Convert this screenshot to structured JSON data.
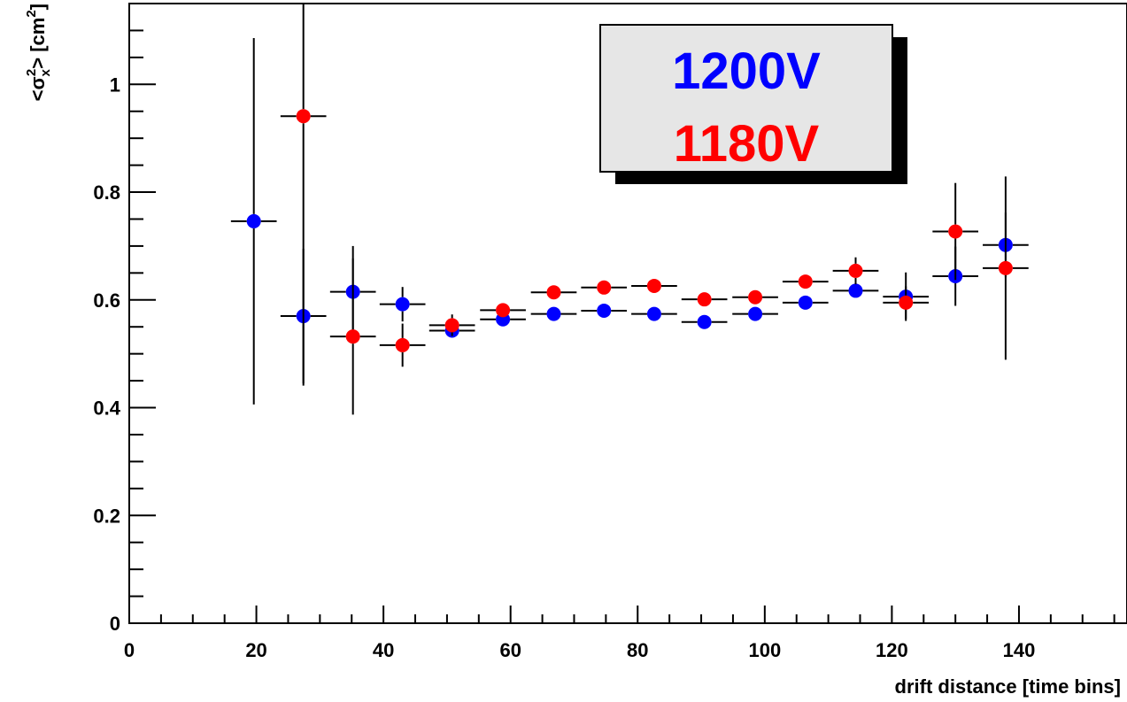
{
  "chart_data": {
    "type": "scatter",
    "xlabel": "drift distance [time bins]",
    "ylabel": {
      "prefix": "<σ",
      "subscript": "x",
      "superscript": "2",
      "suffix": "> [cm",
      "unit_superscript": "2",
      "close": "]"
    },
    "xlim": [
      0,
      157
    ],
    "ylim": [
      0,
      1.15
    ],
    "x_ticks": [
      "0",
      "20",
      "40",
      "60",
      "80",
      "100",
      "120",
      "140"
    ],
    "y_ticks": [
      "0",
      "0.2",
      "0.4",
      "0.6",
      "0.8",
      "1"
    ],
    "grid": false,
    "legend_placement": "top-center",
    "bin_half_width": 3.6,
    "series": [
      {
        "name": "1200V",
        "color": "#0000ff",
        "points": [
          {
            "x": 19.6,
            "y": 0.746,
            "err": 0.34
          },
          {
            "x": 27.4,
            "y": 0.57,
            "err": 0.125
          },
          {
            "x": 35.2,
            "y": 0.615,
            "err": 0.085
          },
          {
            "x": 43.0,
            "y": 0.592,
            "err": 0.032
          },
          {
            "x": 50.8,
            "y": 0.543,
            "err": 0.01
          },
          {
            "x": 58.8,
            "y": 0.564,
            "err": 0.006
          },
          {
            "x": 66.8,
            "y": 0.574,
            "err": 0.006
          },
          {
            "x": 74.7,
            "y": 0.58,
            "err": 0.006
          },
          {
            "x": 82.6,
            "y": 0.574,
            "err": 0.006
          },
          {
            "x": 90.5,
            "y": 0.559,
            "err": 0.007
          },
          {
            "x": 98.5,
            "y": 0.574,
            "err": 0.007
          },
          {
            "x": 106.4,
            "y": 0.595,
            "err": 0.008
          },
          {
            "x": 114.3,
            "y": 0.617,
            "err": 0.01
          },
          {
            "x": 122.2,
            "y": 0.606,
            "err": 0.045
          },
          {
            "x": 130.0,
            "y": 0.644,
            "err": 0.055
          },
          {
            "x": 137.9,
            "y": 0.702,
            "err": 0.06
          }
        ]
      },
      {
        "name": "1180V",
        "color": "#ff0000",
        "points": [
          {
            "x": 27.4,
            "y": 0.941,
            "err": 0.5
          },
          {
            "x": 35.2,
            "y": 0.532,
            "err": 0.145
          },
          {
            "x": 43.0,
            "y": 0.516,
            "err": 0.04
          },
          {
            "x": 50.8,
            "y": 0.553,
            "err": 0.02
          },
          {
            "x": 58.8,
            "y": 0.581,
            "err": 0.006
          },
          {
            "x": 66.8,
            "y": 0.614,
            "err": 0.006
          },
          {
            "x": 74.7,
            "y": 0.623,
            "err": 0.006
          },
          {
            "x": 82.6,
            "y": 0.626,
            "err": 0.006
          },
          {
            "x": 90.5,
            "y": 0.601,
            "err": 0.007
          },
          {
            "x": 98.5,
            "y": 0.605,
            "err": 0.008
          },
          {
            "x": 106.4,
            "y": 0.634,
            "err": 0.008
          },
          {
            "x": 114.3,
            "y": 0.654,
            "err": 0.025
          },
          {
            "x": 122.2,
            "y": 0.595,
            "err": 0.03
          },
          {
            "x": 130.0,
            "y": 0.727,
            "err": 0.09
          },
          {
            "x": 137.9,
            "y": 0.659,
            "err": 0.17
          }
        ]
      }
    ]
  }
}
